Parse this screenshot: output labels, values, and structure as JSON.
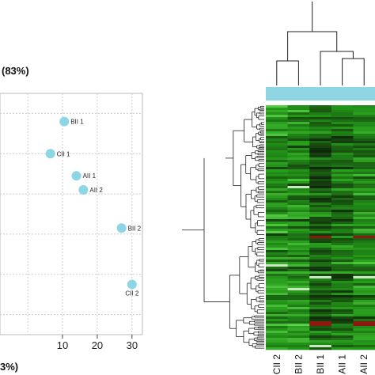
{
  "chart_data": [
    {
      "type": "scatter",
      "panel": "pca-scatter",
      "ylabel": "(83%)",
      "xlabel": "3%)",
      "x_ticks": [
        "10",
        "20",
        "30"
      ],
      "xlim": [
        -8,
        33
      ],
      "ylim": [
        -5,
        7
      ],
      "grid": true,
      "point_color": "#8fd6e4",
      "points": [
        {
          "label": "BII 1",
          "x": 10.5,
          "y": 5.6
        },
        {
          "label": "CII 1",
          "x": 6.5,
          "y": 4.0
        },
        {
          "label": "AII 1",
          "x": 14.0,
          "y": 2.9
        },
        {
          "label": "AII 2",
          "x": 16.0,
          "y": 2.2
        },
        {
          "label": "BII 2",
          "x": 27.0,
          "y": 0.3
        },
        {
          "label": "CII 2",
          "x": 30.0,
          "y": -2.5
        }
      ]
    },
    {
      "type": "heatmap",
      "panel": "expression-heatmap",
      "columns": [
        "CII 2",
        "BII 2",
        "BII 1",
        "AII 1",
        "AII 2"
      ],
      "column_bar_color": "#8fd6e4",
      "palette": {
        "low": "#0b2a08",
        "mid": "#1f8a16",
        "high": "#5ee04a",
        "up": "#8a1a10"
      }
    }
  ]
}
